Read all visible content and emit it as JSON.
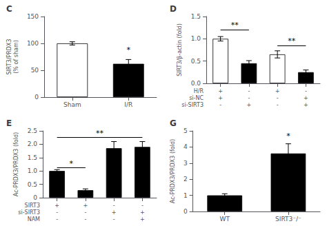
{
  "chart_data": [
    {
      "type": "bar",
      "title": "C",
      "categories": [
        "Sham",
        "I/R"
      ],
      "values": [
        100,
        62
      ],
      "errors": [
        3,
        8
      ],
      "colors": [
        "white",
        "black"
      ],
      "ylabel": "SIRT3/PRDX3\n(% of sham)",
      "ylim": [
        0,
        150
      ],
      "yticks": [
        0,
        50,
        100,
        150
      ],
      "grid": false,
      "annotations": [
        {
          "text": "*",
          "x": 1,
          "y": 80
        }
      ]
    },
    {
      "type": "bar",
      "title": "D",
      "categories": [
        "+\n+\n-",
        "-\n-\n+",
        "+\n-\n-",
        "-\n+\n+"
      ],
      "xlabel": "H/R\nsi-NC\nsi-SIRT3",
      "values": [
        1.0,
        0.45,
        0.65,
        0.25
      ],
      "errors": [
        0.05,
        0.06,
        0.08,
        0.05
      ],
      "colors": [
        "white",
        "black",
        "white",
        "black"
      ],
      "ylabel": "SIRT3/β-actin (fold)",
      "ylim": [
        0,
        1.5
      ],
      "yticks": [
        {
          "value": 0,
          "label": "0.0"
        },
        0.5,
        {
          "value": 1,
          "label": "1.0"
        },
        1.5
      ],
      "grid": false,
      "annotations": [
        {
          "text": "**",
          "x": [
            0,
            1
          ],
          "y": 1.2
        },
        {
          "text": "**",
          "x": [
            2,
            3
          ],
          "y": 0.85
        }
      ]
    },
    {
      "type": "bar",
      "title": "E",
      "categories": [
        "+\n-\n-",
        "+\n-\n-",
        "-\n+\n-",
        "-\n+\n+"
      ],
      "xlabel": "SIRT3\nsi-SIRT3\nNAM",
      "values": [
        1.0,
        0.28,
        1.85,
        1.9
      ],
      "errors": [
        0.05,
        0.05,
        0.25,
        0.2
      ],
      "colors": [
        "black",
        "black",
        "black",
        "black"
      ],
      "ylabel": "Ac-PRDX3/PRDX3 (fold)",
      "ylim": [
        0,
        2.5
      ],
      "yticks": [
        0,
        0.5,
        {
          "value": 1,
          "label": "1.0"
        },
        1.5,
        {
          "value": 2,
          "label": "2.0"
        },
        2.5
      ],
      "grid": false,
      "annotations": [
        {
          "text": "*",
          "x": [
            0,
            1
          ],
          "y": 1.12
        },
        {
          "text": "**",
          "x": [
            0,
            3
          ],
          "y": 2.25
        }
      ]
    },
    {
      "type": "bar",
      "title": "G",
      "categories": [
        "WT",
        "SIRT3⁻/⁻"
      ],
      "values": [
        1.0,
        3.6
      ],
      "errors": [
        0.1,
        0.6
      ],
      "colors": [
        "black",
        "black"
      ],
      "ylabel": "Ac-PRDX3/PRDX3 (fold)",
      "ylim": [
        0,
        5
      ],
      "yticks": [
        0,
        1,
        2,
        3,
        4,
        5
      ],
      "grid": false,
      "annotations": [
        {
          "text": "*",
          "x": 1,
          "y": 4.4
        }
      ]
    }
  ]
}
